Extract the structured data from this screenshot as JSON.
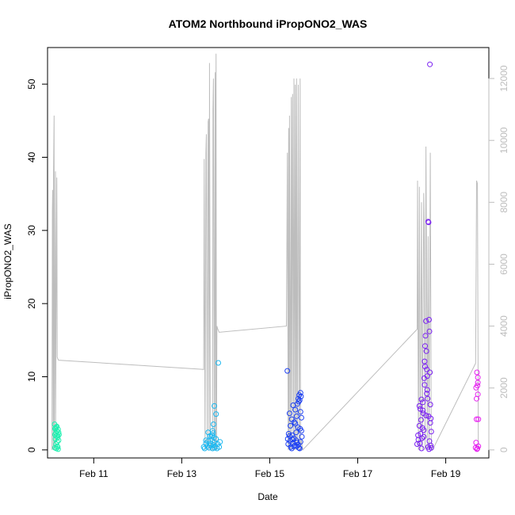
{
  "chart_data": {
    "type": "scatter",
    "title": "ATOM2 Northbound iPropONO2_WAS",
    "xlabel": "Date",
    "ylabel": "iPropONO2_WAS",
    "x_ticks": [
      "Feb 11",
      "Feb 13",
      "Feb 15",
      "Feb 17",
      "Feb 19"
    ],
    "x_tick_days": [
      11,
      13,
      15,
      17,
      19
    ],
    "xlim": [
      9.95,
      19.98
    ],
    "ylim": [
      -1.1,
      55
    ],
    "y_ticks": [
      0,
      10,
      20,
      30,
      40,
      50
    ],
    "y2_ticks": [
      0,
      2000,
      4000,
      6000,
      8000,
      10000,
      12000
    ],
    "y2lim": [
      -260,
      13000
    ],
    "colors": {
      "flight1": "#1ff0b0",
      "flight2": "#1cb8f0",
      "flight3": "#1d40f2",
      "flight4": "#7a1ff2",
      "flight5": "#e61ff0",
      "altitude": "#bdbdbd"
    },
    "series": [
      {
        "color_key": "flight1",
        "x": [
          10.11,
          10.12,
          10.12,
          10.13,
          10.13,
          10.14,
          10.14,
          10.15,
          10.15,
          10.16,
          10.16,
          10.17,
          10.17,
          10.18,
          10.18,
          10.19,
          10.19,
          10.2,
          10.2,
          10.21,
          10.12,
          10.15,
          10.18
        ],
        "y": [
          3.5,
          2.1,
          0.3,
          1.5,
          3.0,
          2.3,
          0.8,
          1.9,
          0.2,
          2.6,
          3.2,
          1.1,
          0.5,
          2.0,
          1.7,
          2.8,
          0.1,
          2.4,
          1.3,
          2.1,
          2.9,
          3.1,
          0.4
        ]
      },
      {
        "color_key": "flight2",
        "x": [
          13.5,
          13.52,
          13.55,
          13.58,
          13.6,
          13.62,
          13.65,
          13.68,
          13.7,
          13.72,
          13.73,
          13.75,
          13.76,
          13.78,
          13.8,
          13.82,
          13.83,
          13.85,
          13.87,
          13.6,
          13.64,
          13.7,
          13.74,
          13.78,
          13.55,
          13.66,
          13.72,
          13.69,
          13.71,
          13.73
        ],
        "y": [
          0.4,
          0.2,
          0.9,
          0.5,
          1.2,
          0.3,
          0.6,
          1.8,
          0.2,
          0.7,
          1.0,
          0.3,
          0.5,
          1.5,
          0.2,
          0.8,
          11.9,
          0.4,
          1.1,
          2.4,
          1.9,
          2.6,
          6.0,
          4.9,
          1.3,
          0.9,
          3.5,
          2.0,
          2.3,
          1.7
        ]
      },
      {
        "color_key": "flight3",
        "x": [
          15.4,
          15.41,
          15.42,
          15.43,
          15.45,
          15.46,
          15.47,
          15.48,
          15.5,
          15.51,
          15.52,
          15.53,
          15.55,
          15.56,
          15.57,
          15.58,
          15.6,
          15.61,
          15.62,
          15.63,
          15.64,
          15.65,
          15.66,
          15.67,
          15.68,
          15.69,
          15.7,
          15.7,
          15.71,
          15.72,
          15.73,
          15.5,
          15.55,
          15.6,
          15.65,
          15.68,
          15.7,
          15.72,
          15.45,
          15.52,
          15.58,
          15.62,
          15.66
        ],
        "y": [
          10.8,
          1.5,
          0.8,
          2.2,
          5.0,
          1.2,
          3.3,
          0.4,
          4.2,
          2.0,
          0.9,
          6.1,
          1.6,
          3.8,
          0.6,
          5.5,
          2.4,
          4.6,
          1.0,
          6.3,
          3.1,
          7.0,
          0.3,
          7.5,
          6.8,
          2.9,
          7.8,
          5.2,
          7.3,
          4.4,
          1.8,
          0.2,
          0.5,
          1.3,
          0.7,
          0.2,
          1.1,
          2.6,
          1.9,
          1.4,
          3.6,
          0.5,
          6.6
        ]
      },
      {
        "color_key": "flight4",
        "x": [
          18.35,
          18.37,
          18.38,
          18.4,
          18.41,
          18.42,
          18.43,
          18.44,
          18.45,
          18.46,
          18.47,
          18.48,
          18.49,
          18.5,
          18.51,
          18.52,
          18.53,
          18.54,
          18.55,
          18.56,
          18.57,
          18.58,
          18.59,
          18.6,
          18.61,
          18.62,
          18.63,
          18.64,
          18.65,
          18.66,
          18.67,
          18.45,
          18.5,
          18.55,
          18.6,
          18.62,
          18.64,
          18.66,
          18.4,
          18.48,
          18.52,
          18.58,
          18.63,
          18.65,
          18.67,
          18.53,
          18.57,
          18.61
        ],
        "y": [
          0.8,
          2.0,
          1.4,
          3.3,
          0.9,
          5.6,
          2.2,
          4.1,
          6.9,
          1.6,
          3.0,
          6.5,
          5.0,
          2.7,
          9.8,
          12.1,
          14.2,
          15.6,
          17.6,
          13.5,
          11.0,
          8.2,
          7.0,
          31.2,
          31.1,
          17.8,
          16.2,
          10.6,
          6.2,
          4.3,
          2.5,
          0.2,
          1.8,
          4.7,
          0.4,
          0.1,
          52.7,
          0.6,
          6.0,
          5.4,
          8.9,
          10.1,
          1.2,
          3.7,
          0.3,
          11.4,
          7.7,
          4.6
        ]
      },
      {
        "color_key": "flight5",
        "x": [
          19.68,
          19.69,
          19.7,
          19.7,
          19.71,
          19.72,
          19.72,
          19.73,
          19.73,
          19.74,
          19.74,
          19.69,
          19.71,
          19.73
        ],
        "y": [
          0.3,
          1.0,
          7.0,
          4.2,
          10.6,
          8.8,
          0.2,
          9.9,
          7.6,
          4.2,
          0.5,
          8.5,
          0.1,
          9.2
        ]
      }
    ],
    "altitude_trace": {
      "color_key": "altitude",
      "x": [
        10.05,
        10.06,
        10.065,
        10.08,
        10.085,
        10.1,
        10.1,
        10.13,
        10.13,
        10.16,
        10.17,
        10.18,
        10.2,
        13.5,
        13.51,
        13.53,
        13.55,
        13.56,
        13.58,
        13.6,
        13.61,
        13.62,
        13.63,
        13.63,
        13.65,
        13.7,
        13.71,
        13.72,
        13.74,
        13.76,
        13.77,
        13.78,
        13.79,
        13.8,
        13.82,
        13.85,
        15.38,
        15.4,
        15.42,
        15.43,
        15.44,
        15.45,
        15.47,
        15.49,
        15.5,
        15.52,
        15.54,
        15.55,
        15.57,
        15.58,
        15.6,
        15.61,
        15.63,
        15.65,
        15.67,
        15.69,
        15.7,
        15.72,
        15.75,
        18.35,
        18.36,
        18.38,
        18.4,
        18.42,
        18.45,
        18.47,
        18.5,
        18.51,
        18.53,
        18.55,
        18.56,
        18.58,
        18.6,
        18.62,
        18.65,
        18.67,
        18.7,
        19.68,
        19.7,
        19.72,
        19.74,
        19.76
      ],
      "y": [
        0,
        7700,
        8400,
        0,
        8900,
        10800,
        0,
        9000,
        0,
        8800,
        3000,
        2950,
        2900,
        2600,
        9400,
        0,
        9600,
        10200,
        0,
        10600,
        10700,
        0,
        11300,
        12500,
        0,
        0,
        11000,
        12000,
        0,
        12200,
        0,
        12800,
        0,
        4000,
        3900,
        3800,
        4000,
        9600,
        0,
        10400,
        0,
        10800,
        0,
        11400,
        0,
        11500,
        0,
        12000,
        0,
        11800,
        0,
        12000,
        0,
        11800,
        0,
        12000,
        0,
        300,
        0,
        3900,
        8700,
        0,
        8500,
        0,
        8000,
        0,
        8300,
        7200,
        0,
        9800,
        7400,
        0,
        6900,
        0,
        9600,
        200,
        0,
        2800,
        8700,
        8600,
        200,
        0
      ]
    }
  }
}
